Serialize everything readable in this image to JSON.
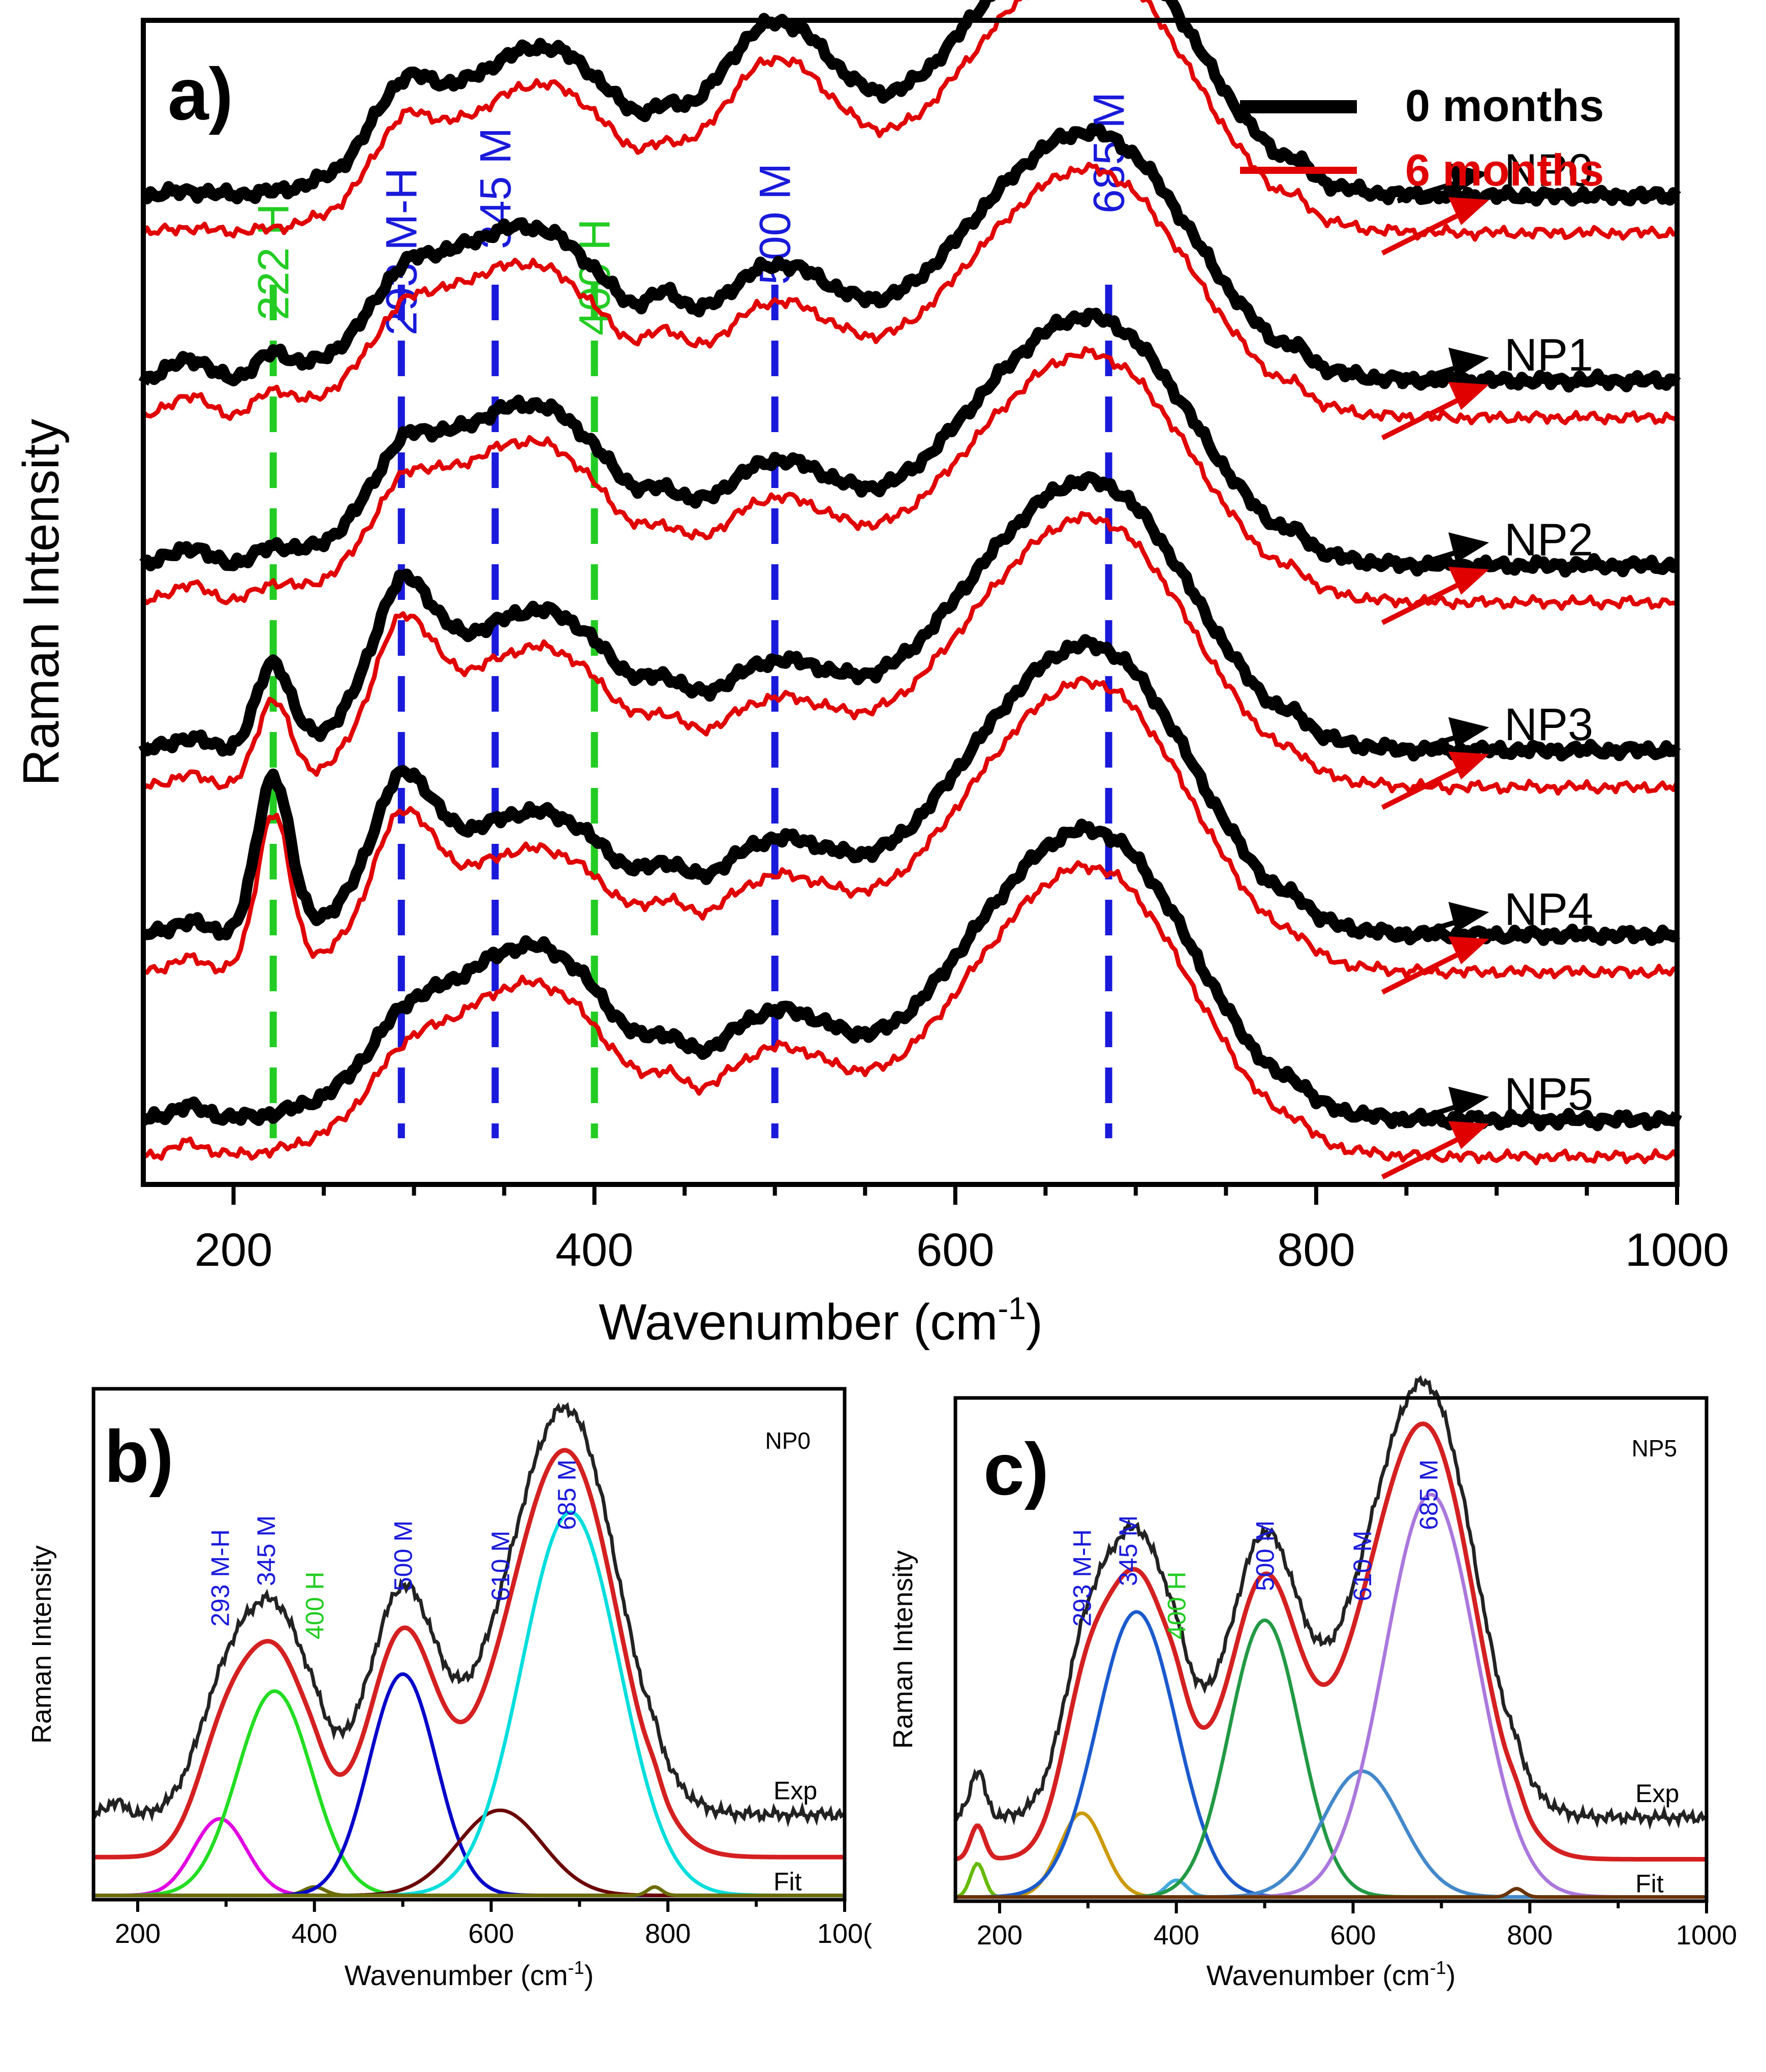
{
  "chart_data": [
    {
      "panel": "a)",
      "type": "line",
      "title": "",
      "xlabel": "Wavenumber (cm",
      "xlabel_sup": "-1",
      "xlabel_close": ")",
      "ylabel": "Raman Intensity",
      "xlim": [
        150,
        1000
      ],
      "ylim": [
        0,
        6.3
      ],
      "xticks": [
        200,
        400,
        600,
        800,
        1000
      ],
      "legend": {
        "position": "top-right",
        "entries": [
          {
            "label": "0 months",
            "color": "#000000"
          },
          {
            "label": "6 months",
            "color": "#e00000"
          }
        ]
      },
      "reference_lines": [
        {
          "x": 222,
          "label": "222 H",
          "color": "#22cc22"
        },
        {
          "x": 293,
          "label": "293 M-H",
          "color": "#1a1adb"
        },
        {
          "x": 345,
          "label": "345 M",
          "color": "#1a1adb"
        },
        {
          "x": 400,
          "label": "400 H",
          "color": "#22cc22"
        },
        {
          "x": 500,
          "label": "500 M",
          "color": "#1a1adb"
        },
        {
          "x": 685,
          "label": "685 M",
          "color": "#1a1adb"
        }
      ],
      "series": [
        {
          "name": "NP0",
          "offset": 5.0,
          "amp": 1.3,
          "params": [
            0.02,
            0.0,
            0.22,
            0.35,
            0.42,
            0.08,
            0.7,
            0.42,
            1.0
          ]
        },
        {
          "name": "NP1",
          "offset": 4.0,
          "amp": 1.2,
          "params": [
            0.1,
            0.1,
            0.15,
            0.5,
            0.38,
            0.15,
            0.5,
            0.4,
            1.0
          ]
        },
        {
          "name": "NP2",
          "offset": 3.0,
          "amp": 1.2,
          "params": [
            0.08,
            0.06,
            0.2,
            0.5,
            0.42,
            0.1,
            0.45,
            0.4,
            1.0
          ]
        },
        {
          "name": "NP3",
          "offset": 2.0,
          "amp": 1.3,
          "params": [
            0.05,
            0.35,
            0.45,
            0.35,
            0.38,
            0.1,
            0.35,
            0.4,
            1.0
          ]
        },
        {
          "name": "NP4",
          "offset": 1.0,
          "amp": 1.4,
          "params": [
            0.05,
            0.6,
            0.4,
            0.3,
            0.3,
            0.1,
            0.35,
            0.4,
            1.0
          ]
        },
        {
          "name": "NP5",
          "offset": 0.0,
          "amp": 1.4,
          "params": [
            0.05,
            0.0,
            0.1,
            0.45,
            0.4,
            0.1,
            0.4,
            0.4,
            1.0
          ]
        }
      ],
      "aged_offset": -0.2
    },
    {
      "panel": "b)",
      "sample": "NP0",
      "type": "line",
      "xlabel": "Wavenumber (cm",
      "xlabel_sup": "-1",
      "xlabel_close": ")",
      "ylabel": "Raman Intensity",
      "xlim": [
        150,
        1000
      ],
      "ylim": [
        0,
        1.2
      ],
      "xticks": [
        200,
        400,
        600,
        800,
        "100("
      ],
      "exp_label": "Exp",
      "fit_label": "Fit",
      "fit_offset": 0.1,
      "exp_offset": 0.2,
      "peaks": [
        {
          "x": 293,
          "amp": 0.18,
          "width": 30,
          "color": "#e000e0"
        },
        {
          "x": 355,
          "amp": 0.48,
          "width": 42,
          "color": "#22dd22"
        },
        {
          "x": 400,
          "amp": 0.02,
          "width": 12,
          "color": "#6b6b00"
        },
        {
          "x": 500,
          "amp": 0.52,
          "width": 38,
          "color": "#0000c8"
        },
        {
          "x": 610,
          "amp": 0.2,
          "width": 48,
          "color": "#6b0000"
        },
        {
          "x": 690,
          "amp": 0.9,
          "width": 55,
          "color": "#00dddd"
        },
        {
          "x": 785,
          "amp": 0.02,
          "width": 8,
          "color": "#6b6b00"
        }
      ],
      "labels": [
        {
          "x": 293,
          "text": "293 M-H",
          "color": "#1a1adb"
        },
        {
          "x": 345,
          "text": "345 M",
          "color": "#1a1adb"
        },
        {
          "x": 400,
          "text": "400 H",
          "color": "#22cc22"
        },
        {
          "x": 500,
          "text": "500 M",
          "color": "#1a1adb"
        },
        {
          "x": 610,
          "text": "610 M",
          "color": "#1a1adb"
        },
        {
          "x": 685,
          "text": "685 M",
          "color": "#1a1adb"
        }
      ]
    },
    {
      "panel": "c)",
      "sample": "NP5",
      "type": "line",
      "xlabel": "Wavenumber (cm",
      "xlabel_sup": "-1",
      "xlabel_close": ")",
      "ylabel": "Raman Intensity",
      "xlim": [
        150,
        1000
      ],
      "ylim": [
        0,
        1.2
      ],
      "xticks": [
        200,
        400,
        600,
        800,
        1000
      ],
      "exp_label": "Exp",
      "fit_label": "Fit",
      "fit_offset": 0.1,
      "exp_offset": 0.2,
      "peaks": [
        {
          "x": 175,
          "amp": 0.08,
          "width": 8,
          "color": "#66bb00"
        },
        {
          "x": 293,
          "amp": 0.2,
          "width": 25,
          "color": "#cc9900"
        },
        {
          "x": 355,
          "amp": 0.68,
          "width": 45,
          "color": "#1a5acc"
        },
        {
          "x": 400,
          "amp": 0.04,
          "width": 12,
          "color": "#44aadd"
        },
        {
          "x": 500,
          "amp": 0.66,
          "width": 40,
          "color": "#229944"
        },
        {
          "x": 610,
          "amp": 0.3,
          "width": 45,
          "color": "#4488cc"
        },
        {
          "x": 688,
          "amp": 0.96,
          "width": 52,
          "color": "#aa77dd"
        },
        {
          "x": 785,
          "amp": 0.02,
          "width": 8,
          "color": "#6b3300"
        }
      ],
      "labels": [
        {
          "x": 293,
          "text": "293 M-H",
          "color": "#1a1adb"
        },
        {
          "x": 345,
          "text": "345 M",
          "color": "#1a1adb"
        },
        {
          "x": 400,
          "text": "400 H",
          "color": "#22cc22"
        },
        {
          "x": 500,
          "text": "500 M",
          "color": "#1a1adb"
        },
        {
          "x": 610,
          "text": "610 M",
          "color": "#1a1adb"
        },
        {
          "x": 685,
          "text": "685 M",
          "color": "#1a1adb"
        }
      ]
    }
  ]
}
